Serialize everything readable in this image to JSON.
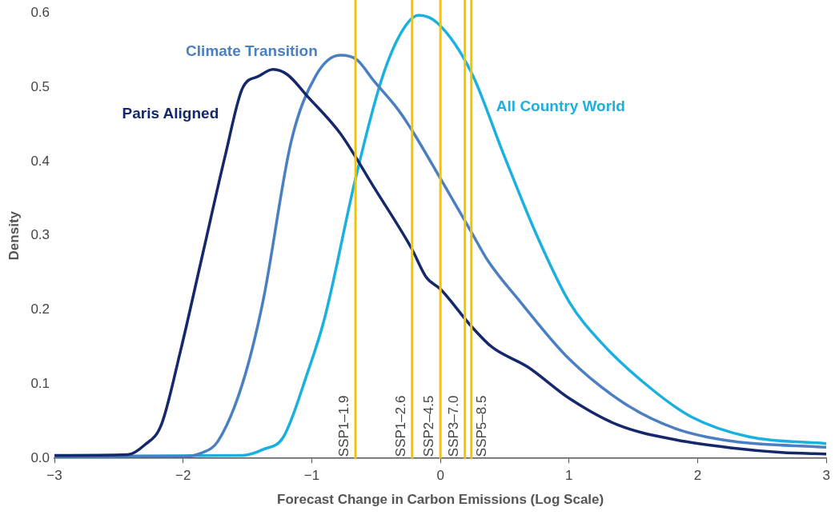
{
  "chart_data": {
    "type": "line",
    "xlabel": "Forecast Change in Carbon Emissions (Log Scale)",
    "ylabel": "Density",
    "xlim": [
      -3,
      3
    ],
    "xticks": [
      {
        "value": -3,
        "label": "−3"
      },
      {
        "value": -2,
        "label": "−2"
      },
      {
        "value": -1,
        "label": "−1"
      },
      0,
      1,
      2,
      3
    ],
    "ylim": [
      0,
      0.6
    ],
    "yticks": [
      {
        "value": 0,
        "label": "0.0"
      },
      0.1,
      0.2,
      0.3,
      0.4,
      0.5,
      0.6
    ],
    "grid": false,
    "legend": false,
    "marker": "none",
    "line_style": "solid",
    "series": [
      {
        "name": "Paris Aligned",
        "color": "#14286b",
        "x": [
          -3,
          -2.43,
          -2.3,
          -2.17,
          -2.02,
          -1.86,
          -1.67,
          -1.54,
          -1.41,
          -1.3,
          -1.19,
          -1.03,
          -0.78,
          -0.52,
          -0.225,
          -0.11,
          0,
          0.24,
          0.4,
          0.68,
          1.0,
          1.38,
          1.83,
          2.27,
          2.65,
          3
        ],
        "values": [
          0.004,
          0.005,
          0.018,
          0.045,
          0.145,
          0.266,
          0.41,
          0.498,
          0.515,
          0.524,
          0.517,
          0.487,
          0.438,
          0.366,
          0.283,
          0.244,
          0.228,
          0.178,
          0.15,
          0.123,
          0.081,
          0.045,
          0.025,
          0.014,
          0.008,
          0.006
        ]
      },
      {
        "name": "Climate Transition",
        "color": "#4a7fc1",
        "x": [
          -3,
          -1.98,
          -1.86,
          -1.73,
          -1.54,
          -1.38,
          -1.16,
          -0.97,
          -0.78,
          -0.65,
          -0.52,
          -0.33,
          -0.225,
          0,
          0.24,
          0.37,
          0.62,
          1,
          1.44,
          1.83,
          2.27,
          3
        ],
        "values": [
          0.003,
          0.003,
          0.007,
          0.023,
          0.1,
          0.211,
          0.427,
          0.515,
          0.543,
          0.537,
          0.509,
          0.47,
          0.443,
          0.377,
          0.305,
          0.266,
          0.211,
          0.134,
          0.073,
          0.04,
          0.023,
          0.015
        ]
      },
      {
        "name": "All Country World",
        "color": "#1ab0e0",
        "x": [
          -3,
          -1.54,
          -1.38,
          -1.22,
          -1.03,
          -0.9,
          -0.66,
          -0.46,
          -0.3,
          -0.17,
          -0.02,
          0.24,
          0.49,
          0.75,
          1,
          1.25,
          1.63,
          1.95,
          2.4,
          3
        ],
        "values": [
          0.003,
          0.004,
          0.012,
          0.029,
          0.117,
          0.189,
          0.377,
          0.509,
          0.575,
          0.597,
          0.586,
          0.52,
          0.41,
          0.3,
          0.211,
          0.156,
          0.095,
          0.056,
          0.029,
          0.02
        ]
      }
    ],
    "ref_lines": [
      {
        "axis": "x",
        "value": -0.66,
        "label": "SSP1–1.9",
        "color": "#f5c400"
      },
      {
        "axis": "x",
        "value": -0.22,
        "label": "SSP1–2.6",
        "color": "#f5c400"
      },
      {
        "axis": "x",
        "value": 0,
        "label": "SSP2–4.5",
        "color": "#f5c400"
      },
      {
        "axis": "x",
        "value": 0.19,
        "label": "SSP3–7.0",
        "color": "#f5c400"
      },
      {
        "axis": "x",
        "value": 0.24,
        "label": "SSP5–8.5",
        "color": "#f5c400"
      }
    ]
  }
}
